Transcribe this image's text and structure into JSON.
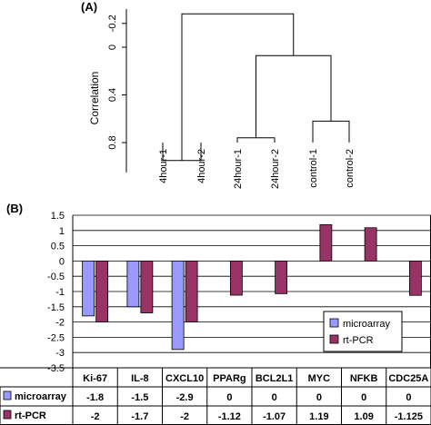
{
  "panel_a_label": "(A)",
  "panel_b_label": "(B)",
  "chart_data": [
    {
      "type": "dendrogram",
      "ylabel": "Correlation",
      "yticks": [
        "-0.2",
        "0",
        "0.4",
        "0.8"
      ],
      "ytick_values": [
        -0.2,
        0,
        0.4,
        0.8
      ],
      "ylim": [
        -0.32,
        1.05
      ],
      "axis_inverted": true,
      "leaves": [
        "4hour-1",
        "4hour-2",
        "24hour-1",
        "24hour-2",
        "control-1",
        "control-2"
      ],
      "merges": [
        {
          "left": "leaf0",
          "right": "leaf1",
          "height": 0.95
        },
        {
          "left": "leaf2",
          "right": "leaf3",
          "height": 0.76
        },
        {
          "left": "leaf4",
          "right": "leaf5",
          "height": 0.62
        },
        {
          "left": "m1",
          "right": "m2",
          "height": 0.07
        },
        {
          "left": "m0",
          "right": "m3",
          "height": -0.28
        }
      ]
    },
    {
      "type": "bar",
      "categories": [
        "Ki-67",
        "IL-8",
        "CXCL10",
        "PPARg",
        "BCL2L1",
        "MYC",
        "NFKB",
        "CDC25A"
      ],
      "series": [
        {
          "name": "microarray",
          "color": "#9999ff",
          "values": [
            -1.8,
            -1.5,
            -2.9,
            0,
            0,
            0,
            0,
            0
          ]
        },
        {
          "name": "rt-PCR",
          "color": "#993366",
          "values": [
            -2,
            -1.7,
            -2,
            -1.12,
            -1.07,
            1.19,
            1.09,
            -1.125
          ]
        }
      ],
      "table_values": [
        [
          "-1.8",
          "-1.5",
          "-2.9",
          "0",
          "0",
          "0",
          "0",
          "0"
        ],
        [
          "-2",
          "-1.7",
          "-2",
          "-1.12",
          "-1.07",
          "1.19",
          "1.09",
          "-1.125"
        ]
      ],
      "yticks": [
        "1.5",
        "1",
        "0.5",
        "0",
        "-0.5",
        "-1",
        "-1.5",
        "-2",
        "-2.5",
        "-3",
        "-3.5"
      ],
      "ytick_values": [
        1.5,
        1,
        0.5,
        0,
        -0.5,
        -1,
        -1.5,
        -2,
        -2.5,
        -3,
        -3.5
      ],
      "ylim": [
        -3.5,
        1.5
      ],
      "grid": true,
      "legend_position": "bottom-right"
    }
  ]
}
